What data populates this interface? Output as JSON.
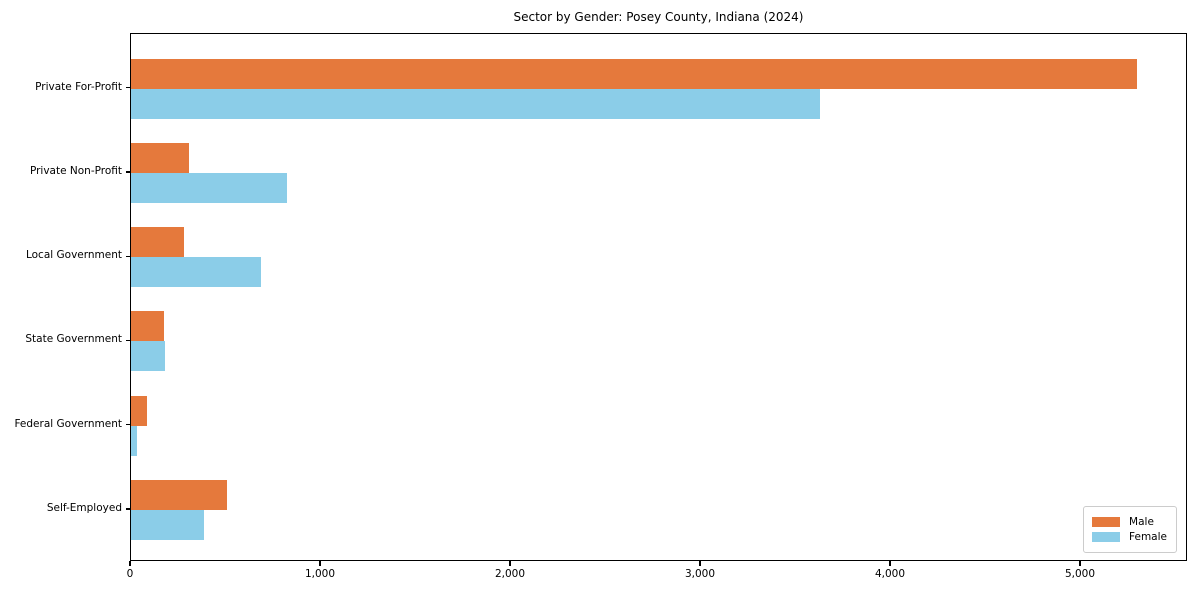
{
  "title": "Sector by Gender: Posey County, Indiana (2024)",
  "colors": {
    "male": "#E5793C",
    "female": "#8BCDE8",
    "axis": "#000000",
    "legend_border": "#cccccc",
    "background": "#ffffff"
  },
  "chart_data": {
    "type": "bar",
    "orientation": "horizontal",
    "title": "Sector by Gender: Posey County, Indiana (2024)",
    "categories": [
      "Private For-Profit",
      "Private Non-Profit",
      "Local Government",
      "State Government",
      "Federal Government",
      "Self-Employed"
    ],
    "series": [
      {
        "name": "Male",
        "color": "#E5793C",
        "values": [
          5295,
          305,
          280,
          175,
          85,
          505
        ]
      },
      {
        "name": "Female",
        "color": "#8BCDE8",
        "values": [
          3625,
          820,
          685,
          180,
          30,
          385
        ]
      }
    ],
    "xlabel": "",
    "ylabel": "",
    "xlim": [
      0,
      5563
    ],
    "xticks": [
      0,
      1000,
      2000,
      3000,
      4000,
      5000
    ],
    "xtick_labels": [
      "0",
      "1,000",
      "2,000",
      "3,000",
      "4,000",
      "5,000"
    ],
    "grid": false,
    "legend_position": "lower right"
  },
  "legend": {
    "items": [
      {
        "label": "Male"
      },
      {
        "label": "Female"
      }
    ]
  }
}
